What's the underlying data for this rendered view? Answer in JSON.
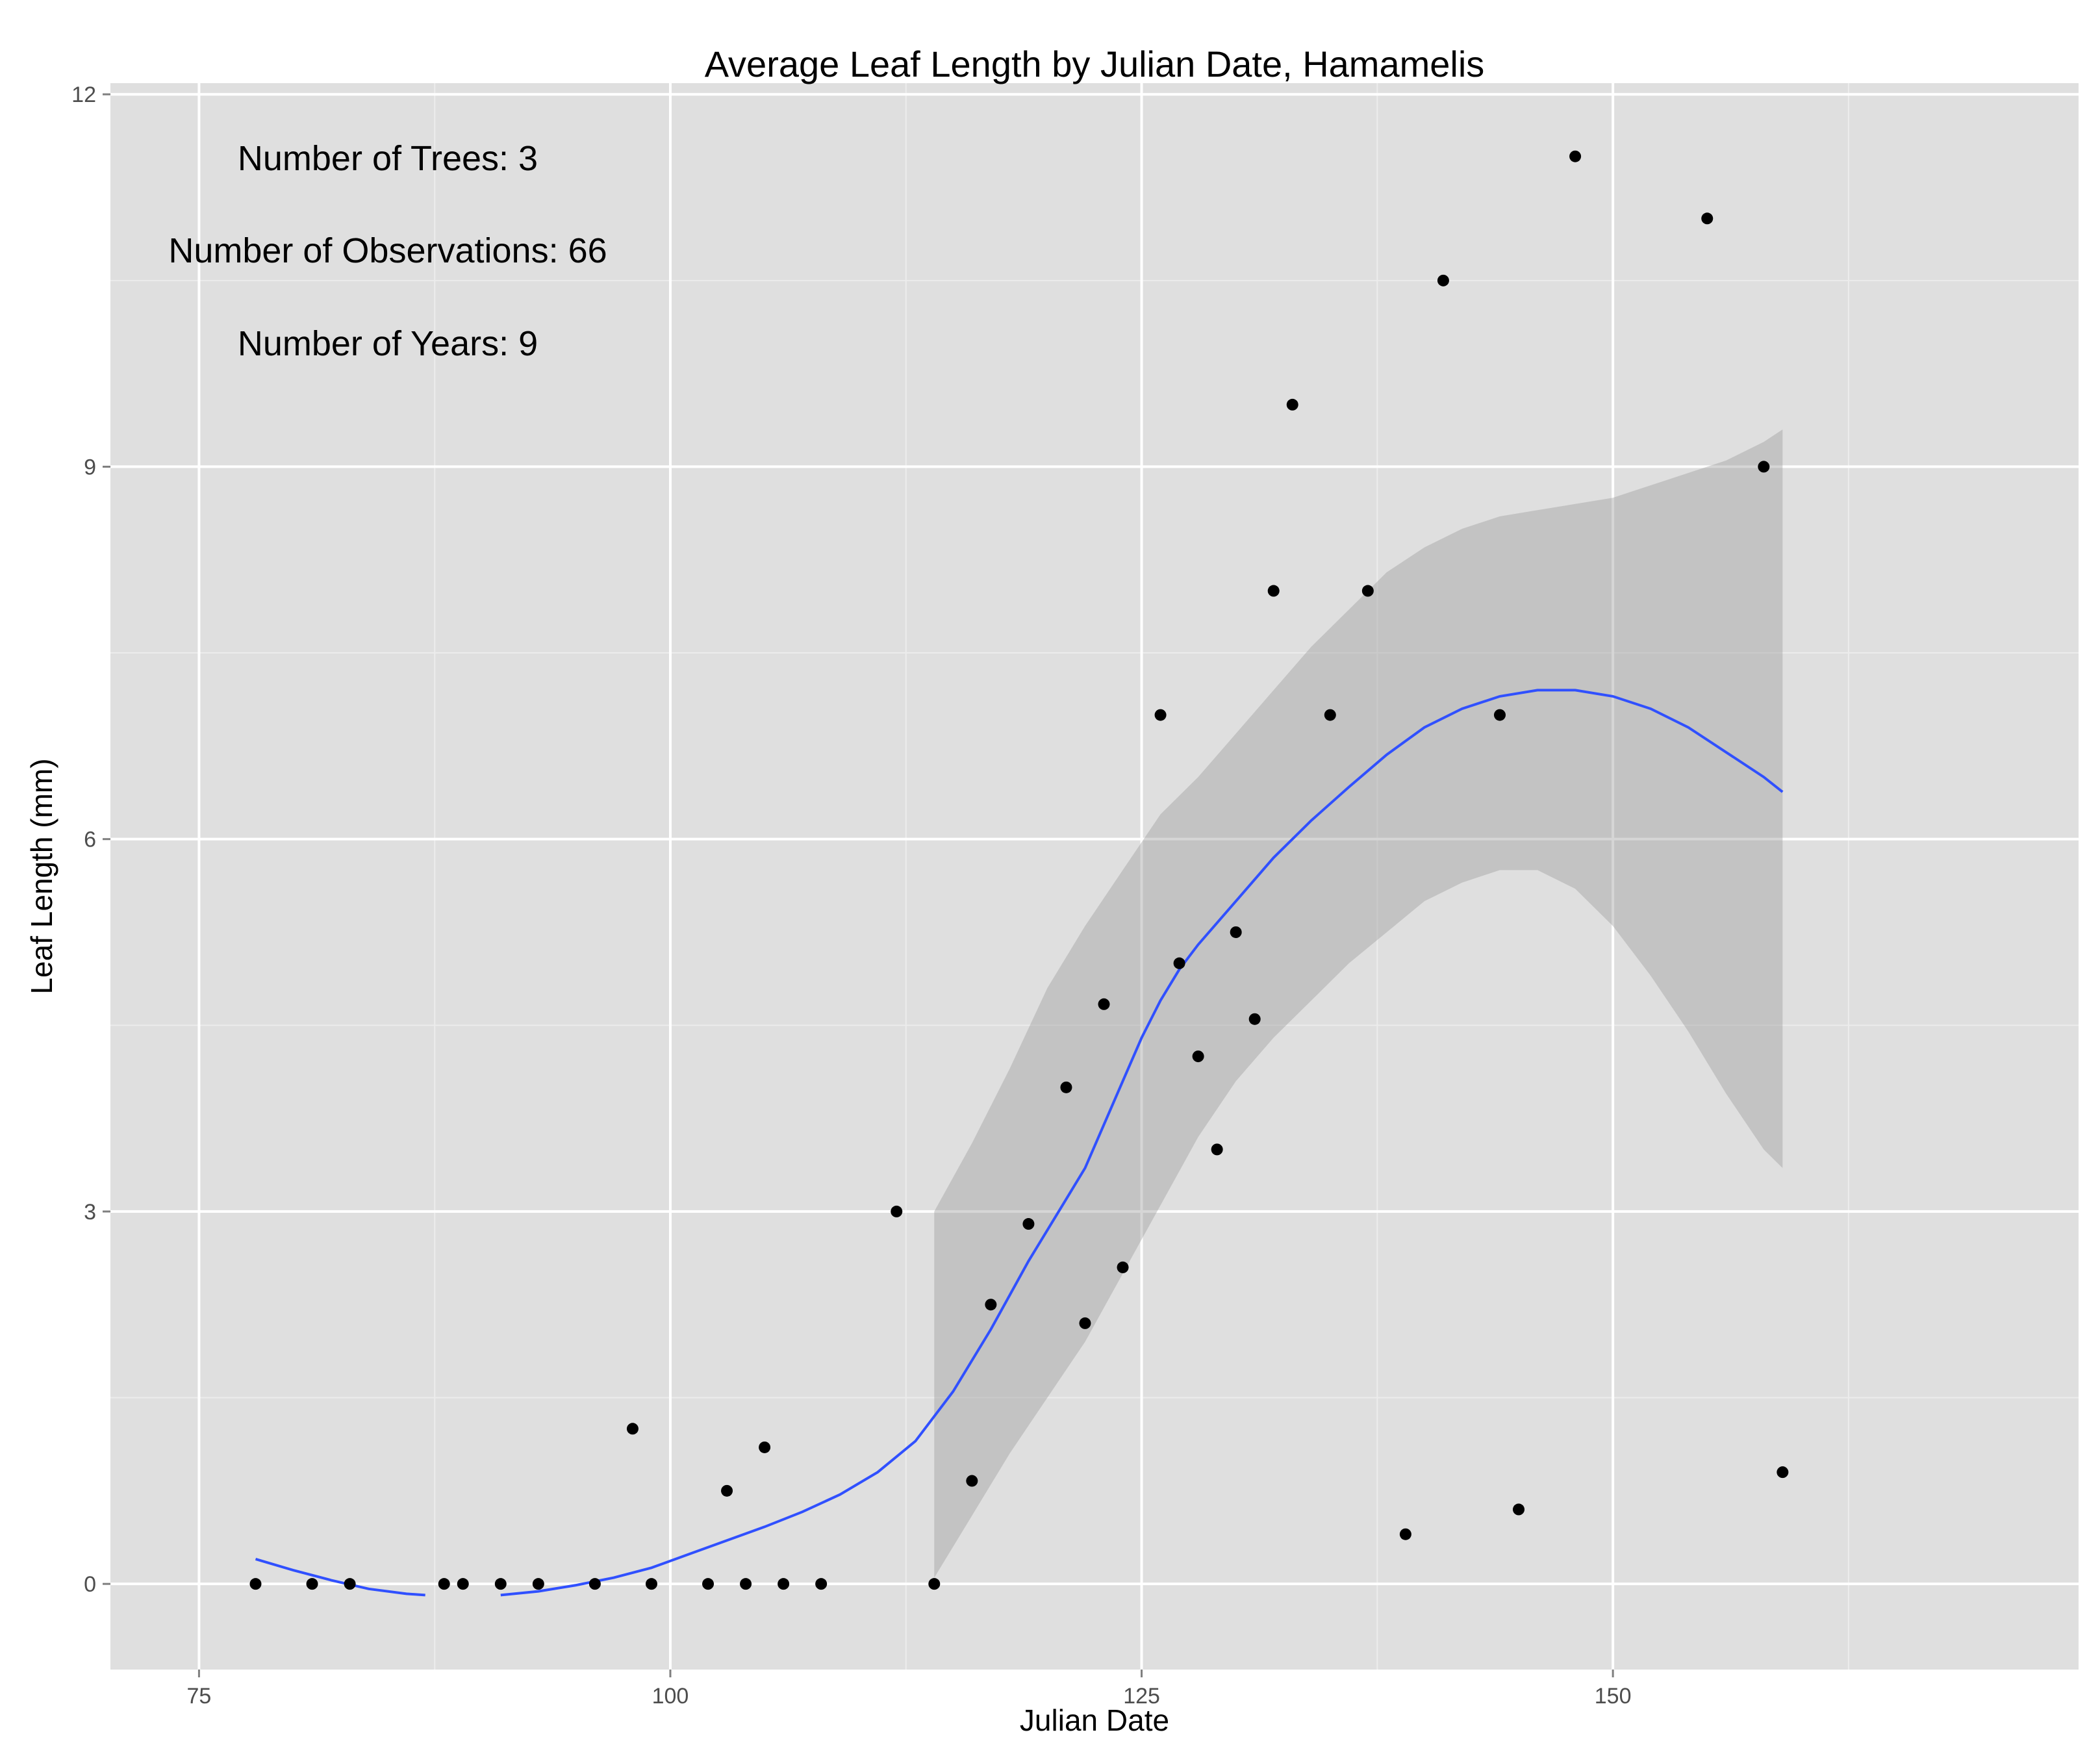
{
  "chart_data": {
    "type": "scatter",
    "title": "Average Leaf Length by Julian Date, Hamamelis",
    "xlabel": "Julian Date",
    "ylabel": "Leaf Length (mm)",
    "xlim": [
      70.3,
      174.7
    ],
    "ylim": [
      -0.69,
      12.09
    ],
    "x_ticks": [
      75,
      100,
      125,
      150
    ],
    "x_tick_labels": [
      "75",
      "100",
      "125",
      "150"
    ],
    "y_ticks": [
      0,
      3,
      6,
      9,
      12
    ],
    "y_tick_labels": [
      "0",
      "3",
      "6",
      "9",
      "12"
    ],
    "x_minor_ticks": [
      87.5,
      112.5,
      137.5,
      162.5
    ],
    "y_minor_ticks": [
      1.5,
      4.5,
      7.5,
      10.5
    ],
    "grid": true,
    "colors": {
      "panel_background": "#dfdfdf",
      "grid_major": "#ffffff",
      "grid_minor": "#ececec",
      "points": "#000000",
      "smooth_line": "#3050ff",
      "confidence_band": "#999999"
    },
    "annotations": [
      "Number of Trees: 3",
      "Number of Observations: 66",
      "Number of Years: 9"
    ],
    "points": [
      {
        "x": 78,
        "y": 0
      },
      {
        "x": 81,
        "y": 0
      },
      {
        "x": 83,
        "y": 0
      },
      {
        "x": 88,
        "y": 0
      },
      {
        "x": 89,
        "y": 0
      },
      {
        "x": 91,
        "y": 0
      },
      {
        "x": 93,
        "y": 0
      },
      {
        "x": 96,
        "y": 0
      },
      {
        "x": 98,
        "y": 1.25
      },
      {
        "x": 99,
        "y": 0
      },
      {
        "x": 102,
        "y": 0
      },
      {
        "x": 103,
        "y": 0.75
      },
      {
        "x": 104,
        "y": 0
      },
      {
        "x": 105,
        "y": 1.1
      },
      {
        "x": 106,
        "y": 0
      },
      {
        "x": 108,
        "y": 0
      },
      {
        "x": 112,
        "y": 3.0
      },
      {
        "x": 114,
        "y": 0
      },
      {
        "x": 116,
        "y": 0.83
      },
      {
        "x": 117,
        "y": 2.25
      },
      {
        "x": 119,
        "y": 2.9
      },
      {
        "x": 121,
        "y": 4.0
      },
      {
        "x": 122,
        "y": 2.1
      },
      {
        "x": 123,
        "y": 4.67
      },
      {
        "x": 124,
        "y": 2.55
      },
      {
        "x": 126,
        "y": 7.0
      },
      {
        "x": 127,
        "y": 5.0
      },
      {
        "x": 128,
        "y": 4.25
      },
      {
        "x": 129,
        "y": 3.5
      },
      {
        "x": 130,
        "y": 5.25
      },
      {
        "x": 131,
        "y": 4.55
      },
      {
        "x": 132,
        "y": 8.0
      },
      {
        "x": 133,
        "y": 9.5
      },
      {
        "x": 135,
        "y": 7.0
      },
      {
        "x": 137,
        "y": 8.0
      },
      {
        "x": 139,
        "y": 0.4
      },
      {
        "x": 141,
        "y": 10.5
      },
      {
        "x": 144,
        "y": 7.0
      },
      {
        "x": 145,
        "y": 0.6
      },
      {
        "x": 148,
        "y": 11.5
      },
      {
        "x": 155,
        "y": 11.0
      },
      {
        "x": 158,
        "y": 9.0
      },
      {
        "x": 159,
        "y": 0.9
      }
    ],
    "smooth_segments": [
      [
        [
          78,
          0.2
        ],
        [
          80,
          0.11
        ],
        [
          82,
          0.03
        ],
        [
          84,
          -0.04
        ],
        [
          86,
          -0.08
        ],
        [
          87,
          -0.09
        ]
      ],
      [
        [
          91,
          -0.09
        ],
        [
          93,
          -0.06
        ],
        [
          95,
          -0.01
        ],
        [
          97,
          0.05
        ],
        [
          99,
          0.13
        ],
        [
          101,
          0.24
        ],
        [
          103,
          0.35
        ],
        [
          105,
          0.46
        ],
        [
          107,
          0.58
        ],
        [
          109,
          0.72
        ],
        [
          111,
          0.9
        ],
        [
          113,
          1.15
        ],
        [
          115,
          1.55
        ],
        [
          117,
          2.05
        ],
        [
          119,
          2.6
        ],
        [
          121,
          3.1
        ],
        [
          122,
          3.35
        ],
        [
          123,
          3.7
        ],
        [
          124,
          4.05
        ],
        [
          125,
          4.4
        ],
        [
          126,
          4.7
        ],
        [
          127,
          4.95
        ],
        [
          128,
          5.15
        ],
        [
          130,
          5.5
        ],
        [
          132,
          5.85
        ],
        [
          134,
          6.15
        ],
        [
          136,
          6.42
        ],
        [
          138,
          6.68
        ],
        [
          140,
          6.9
        ],
        [
          142,
          7.05
        ],
        [
          144,
          7.15
        ],
        [
          146,
          7.2
        ],
        [
          148,
          7.2
        ],
        [
          150,
          7.15
        ],
        [
          152,
          7.05
        ],
        [
          154,
          6.9
        ],
        [
          156,
          6.7
        ],
        [
          158,
          6.5
        ],
        [
          159,
          6.38
        ]
      ]
    ],
    "confidence_band": {
      "x": [
        114,
        116,
        118,
        120,
        122,
        124,
        126,
        128,
        130,
        132,
        134,
        136,
        138,
        140,
        142,
        144,
        146,
        148,
        150,
        152,
        154,
        156,
        158,
        159
      ],
      "lower": [
        0.05,
        0.55,
        1.05,
        1.5,
        1.95,
        2.5,
        3.05,
        3.6,
        4.05,
        4.4,
        4.7,
        5.0,
        5.25,
        5.5,
        5.65,
        5.75,
        5.75,
        5.6,
        5.3,
        4.9,
        4.45,
        3.95,
        3.5,
        3.35
      ],
      "upper": [
        3.0,
        3.55,
        4.15,
        4.8,
        5.3,
        5.75,
        6.2,
        6.5,
        6.85,
        7.2,
        7.55,
        7.85,
        8.15,
        8.35,
        8.5,
        8.6,
        8.65,
        8.7,
        8.75,
        8.85,
        8.95,
        9.05,
        9.2,
        9.3
      ]
    }
  }
}
